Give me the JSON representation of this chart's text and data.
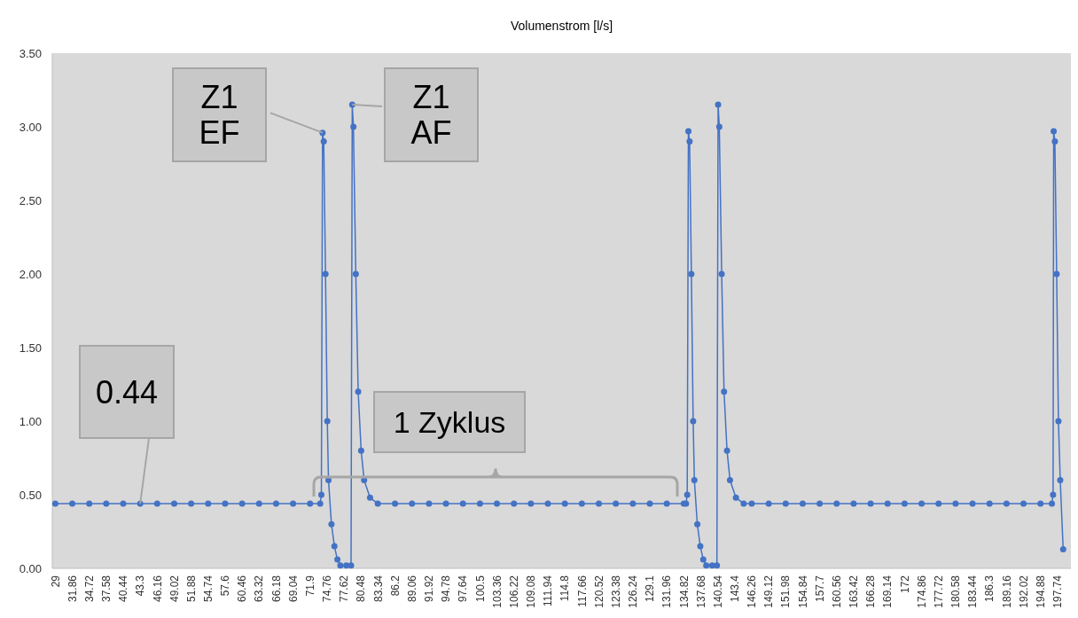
{
  "chart_data": {
    "type": "line",
    "title": "Volumenstrom [l/s]",
    "marker": "circle",
    "line_style": "solid",
    "grid": false,
    "xlim": [
      28.5,
      200
    ],
    "xticks": [
      29,
      31.86,
      34.72,
      37.58,
      40.44,
      43.3,
      46.16,
      49.02,
      51.88,
      54.74,
      57.6,
      60.46,
      63.32,
      66.18,
      69.04,
      71.9,
      74.76,
      77.62,
      80.48,
      83.34,
      86.2,
      89.06,
      91.92,
      94.78,
      97.64,
      100.5,
      103.36,
      106.22,
      109.08,
      111.94,
      114.8,
      117.66,
      120.52,
      123.38,
      126.24,
      129.1,
      131.96,
      134.82,
      137.68,
      140.54,
      143.4,
      146.26,
      149.12,
      151.98,
      154.84,
      157.7,
      160.56,
      163.42,
      166.28,
      169.14,
      172,
      174.86,
      177.72,
      180.58,
      183.44,
      186.3,
      189.16,
      192.02,
      194.88,
      197.74
    ],
    "ylim": [
      0,
      3.5
    ],
    "yticks": [
      {
        "value": 0,
        "label": "0.00"
      },
      {
        "value": 0.5,
        "label": "0.50"
      },
      {
        "value": 1,
        "label": "1.00"
      },
      {
        "value": 1.5,
        "label": "1.50"
      },
      {
        "value": 2,
        "label": "2.00"
      },
      {
        "value": 2.5,
        "label": "2.50"
      },
      {
        "value": 3,
        "label": "3.00"
      },
      {
        "value": 3.5,
        "label": "3.50"
      }
    ],
    "series": [
      {
        "color": "#4472c4",
        "x": [
          29,
          31.86,
          34.72,
          37.58,
          40.44,
          43.3,
          46.16,
          49.02,
          51.88,
          54.74,
          57.6,
          60.46,
          63.32,
          66.18,
          69.04,
          71.9,
          73.6,
          73.8,
          74.0,
          74.2,
          74.5,
          74.8,
          75.0,
          75.5,
          76,
          76.5,
          77,
          78,
          78.8,
          79.0,
          79.2,
          79.6,
          80.0,
          80.5,
          81,
          82,
          83.3,
          86.2,
          89.06,
          91.92,
          94.78,
          97.64,
          100.5,
          103.36,
          106.22,
          109.08,
          111.94,
          114.8,
          117.66,
          120.52,
          123.38,
          126.24,
          129.1,
          131.96,
          134.82,
          135.2,
          135.4,
          135.6,
          135.8,
          136.1,
          136.4,
          136.6,
          137.1,
          137.6,
          138.1,
          138.6,
          139.6,
          140.4,
          140.6,
          140.8,
          141.2,
          141.6,
          142.1,
          142.6,
          143.6,
          144.9,
          146.26,
          149.12,
          151.98,
          154.84,
          157.7,
          160.56,
          163.42,
          166.28,
          169.14,
          172,
          174.86,
          177.72,
          180.58,
          183.44,
          186.3,
          189.16,
          192.02,
          194.88,
          196.8,
          197.0,
          197.1,
          197.3,
          197.6,
          197.9,
          198.2,
          198.7
        ],
        "values": [
          0.44,
          0.44,
          0.44,
          0.44,
          0.44,
          0.44,
          0.44,
          0.44,
          0.44,
          0.44,
          0.44,
          0.44,
          0.44,
          0.44,
          0.44,
          0.44,
          0.44,
          0.5,
          2.96,
          2.9,
          2.0,
          1.0,
          0.6,
          0.3,
          0.15,
          0.06,
          0.02,
          0.02,
          0.02,
          3.15,
          3.0,
          2.0,
          1.2,
          0.8,
          0.6,
          0.48,
          0.44,
          0.44,
          0.44,
          0.44,
          0.44,
          0.44,
          0.44,
          0.44,
          0.44,
          0.44,
          0.44,
          0.44,
          0.44,
          0.44,
          0.44,
          0.44,
          0.44,
          0.44,
          0.44,
          0.44,
          0.5,
          2.97,
          2.9,
          2.0,
          1.0,
          0.6,
          0.3,
          0.15,
          0.06,
          0.02,
          0.02,
          0.02,
          3.15,
          3.0,
          2.0,
          1.2,
          0.8,
          0.6,
          0.48,
          0.44,
          0.44,
          0.44,
          0.44,
          0.44,
          0.44,
          0.44,
          0.44,
          0.44,
          0.44,
          0.44,
          0.44,
          0.44,
          0.44,
          0.44,
          0.44,
          0.44,
          0.44,
          0.44,
          0.44,
          0.5,
          2.97,
          2.9,
          2.0,
          1.0,
          0.6,
          0.13
        ]
      }
    ],
    "annotations": [
      {
        "text": "Z1\nEF",
        "x": 74.0,
        "y": 2.96
      },
      {
        "text": "Z1\nAF",
        "x": 79.0,
        "y": 3.15
      },
      {
        "text": "0.44",
        "x": 43.3,
        "y": 0.44
      },
      "1 Zyklus"
    ]
  }
}
